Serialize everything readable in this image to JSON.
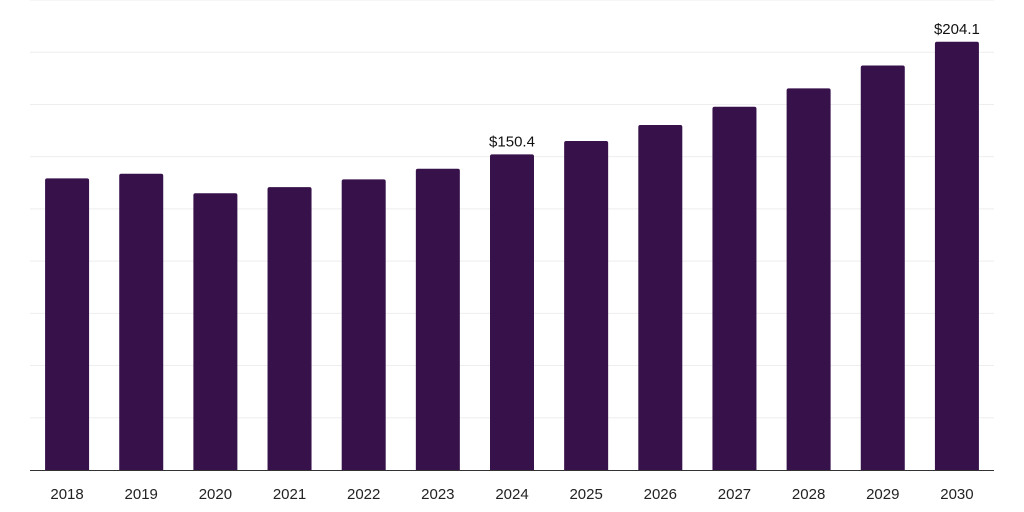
{
  "chart_data": {
    "type": "bar",
    "title": "",
    "xlabel": "",
    "ylabel": "",
    "categories": [
      "2018",
      "2019",
      "2020",
      "2021",
      "2022",
      "2023",
      "2024",
      "2025",
      "2026",
      "2027",
      "2028",
      "2029",
      "2030"
    ],
    "values": [
      139.0,
      141.2,
      131.9,
      134.8,
      138.5,
      143.6,
      150.4,
      156.8,
      164.4,
      173.1,
      181.9,
      192.8,
      204.1
    ],
    "data_labels": [
      {
        "index": 6,
        "text": "$150.4"
      },
      {
        "index": 12,
        "text": "$204.1"
      }
    ],
    "ylim": [
      0,
      224
    ],
    "grid": true,
    "legend": "none",
    "colors": {
      "bar": "#37114a",
      "grid": "#eeeeee",
      "axis": "#333333"
    }
  }
}
